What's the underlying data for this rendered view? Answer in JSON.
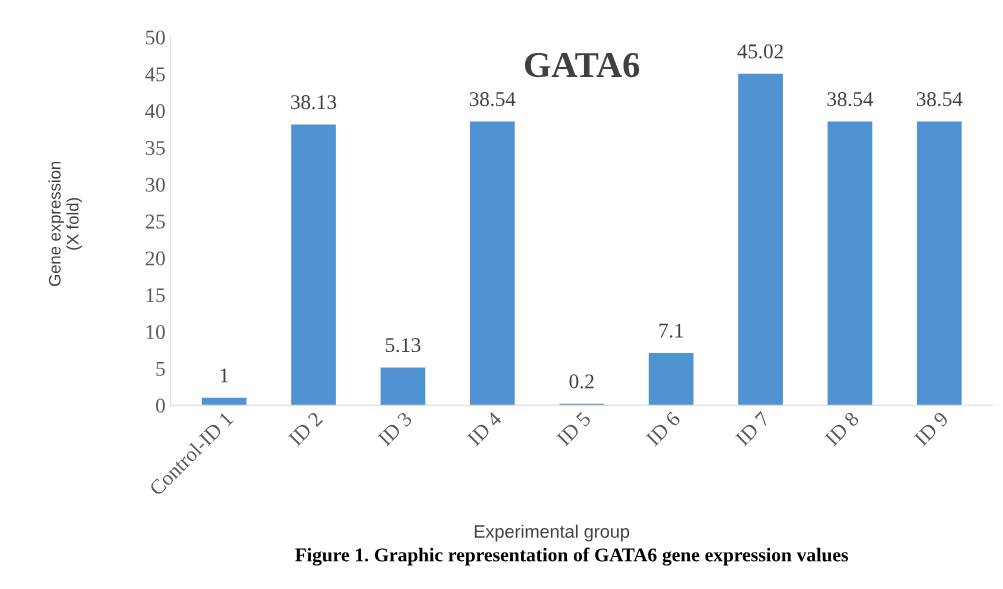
{
  "chart_data": {
    "type": "bar",
    "title": "GATA6",
    "xlabel": "Experimental group",
    "ylabel": "Gene expression\n(X fold)",
    "categories": [
      "Control-ID 1",
      "ID 2",
      "ID 3",
      "ID 4",
      "ID 5",
      "ID 6",
      "ID 7",
      "ID 8",
      "ID 9"
    ],
    "values": [
      1,
      38.13,
      5.13,
      38.54,
      0.2,
      7.1,
      45.02,
      38.54,
      38.54
    ],
    "color": "#4f93d2",
    "ylim": [
      0,
      50
    ],
    "yticks": [
      0,
      5,
      10,
      15,
      20,
      25,
      30,
      35,
      40,
      45,
      50
    ],
    "grid": false,
    "data_labels": true,
    "annotations": [
      "Figure 1. Graphic representation of GATA6 gene expression values"
    ]
  }
}
